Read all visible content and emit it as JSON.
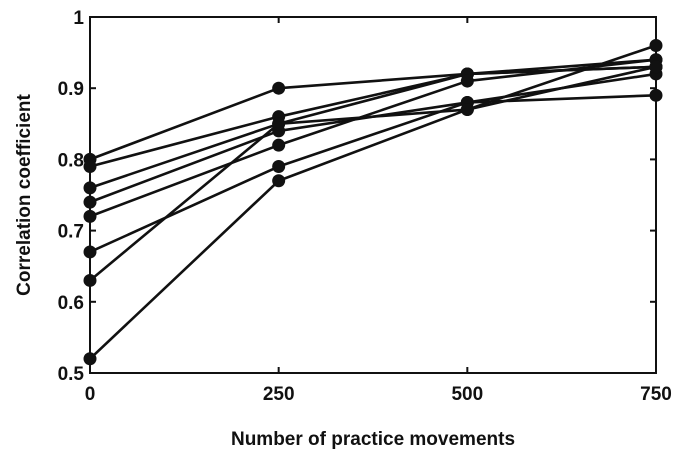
{
  "chart_data": {
    "type": "line",
    "title": "",
    "xlabel": "Number of practice movements",
    "ylabel": "Correlation coefficient",
    "x": [
      0,
      250,
      500,
      750
    ],
    "xlim": [
      0,
      750
    ],
    "ylim": [
      0.5,
      1
    ],
    "xticks": [
      "0",
      "250",
      "500",
      "750"
    ],
    "yticks": [
      "0.5",
      "0.6",
      "0.7",
      "0.8",
      "0.9",
      "1"
    ],
    "grid": false,
    "legend": "none",
    "line_color": "#111111",
    "series": [
      {
        "values": [
          0.8,
          0.9,
          0.92,
          0.93
        ]
      },
      {
        "values": [
          0.79,
          0.86,
          0.92,
          0.94
        ]
      },
      {
        "values": [
          0.76,
          0.85,
          0.92,
          0.93
        ]
      },
      {
        "values": [
          0.74,
          0.84,
          0.88,
          0.92
        ]
      },
      {
        "values": [
          0.72,
          0.82,
          0.91,
          0.94
        ]
      },
      {
        "values": [
          0.67,
          0.79,
          0.88,
          0.89
        ]
      },
      {
        "values": [
          0.63,
          0.85,
          0.87,
          0.96
        ]
      },
      {
        "values": [
          0.52,
          0.77,
          0.87,
          0.93
        ]
      }
    ]
  }
}
